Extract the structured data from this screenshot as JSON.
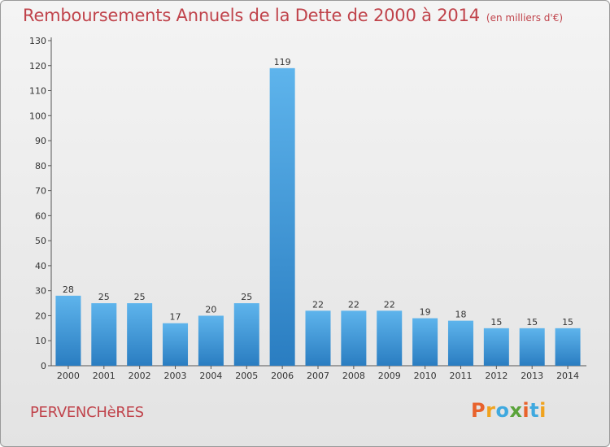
{
  "header": {
    "title": "Remboursements Annuels de la Dette de 2000 à 2014",
    "subtitle": "(en milliers d'€)"
  },
  "footer": {
    "commune": "PERVENCHèRES",
    "logo_letters": [
      "P",
      "r",
      "o",
      "x",
      "i",
      "t",
      "i"
    ],
    "logo_colors": [
      "#e8622c",
      "#f0a31f",
      "#3fa9df",
      "#5aa33a",
      "#e8622c",
      "#3fa9df",
      "#f0a31f"
    ]
  },
  "chart_data": {
    "type": "bar",
    "title": "Remboursements Annuels de la Dette de 2000 à 2014",
    "subtitle": "(en milliers d'€)",
    "categories": [
      "2000",
      "2001",
      "2002",
      "2003",
      "2004",
      "2005",
      "2006",
      "2007",
      "2008",
      "2009",
      "2010",
      "2011",
      "2012",
      "2013",
      "2014"
    ],
    "values": [
      28,
      25,
      25,
      17,
      20,
      25,
      119,
      22,
      22,
      22,
      19,
      18,
      15,
      15,
      15
    ],
    "ylim": [
      0,
      130
    ],
    "yticks": [
      0,
      10,
      20,
      30,
      40,
      50,
      60,
      70,
      80,
      90,
      100,
      110,
      120,
      130
    ],
    "grid": false,
    "bar_color_top": "#5eb4ec",
    "bar_color_bottom": "#2a7dc1"
  }
}
